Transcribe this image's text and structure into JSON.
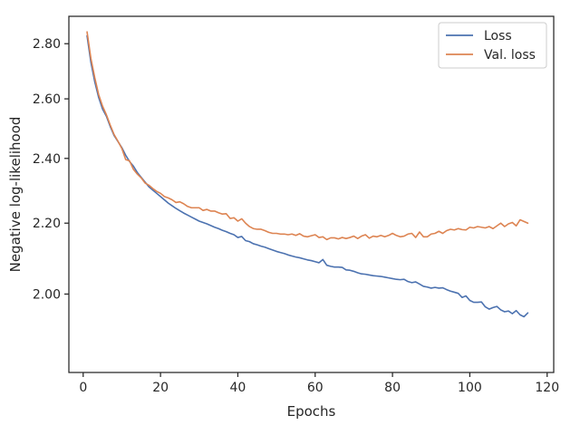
{
  "chart_data": {
    "type": "line",
    "title": "",
    "xlabel": "Epochs",
    "ylabel": "Negative log-likelihood",
    "xlim": [
      -3.7,
      121.7
    ],
    "ylim": [
      1.8,
      2.905
    ],
    "y_scale": "log",
    "x_ticks": [
      0,
      20,
      40,
      60,
      80,
      100,
      120
    ],
    "x_tick_labels": [
      "0",
      "20",
      "40",
      "60",
      "80",
      "100",
      "120"
    ],
    "y_ticks": [
      2.0,
      2.2,
      2.4,
      2.6,
      2.8
    ],
    "y_tick_labels": [
      "2.00",
      "2.20",
      "2.40",
      "2.60",
      "2.80"
    ],
    "grid": false,
    "legend_position": "top-right",
    "series": [
      {
        "name": "Loss",
        "color": "#4c72b0",
        "x_start": 1,
        "values": [
          2.83,
          2.73,
          2.66,
          2.605,
          2.565,
          2.54,
          2.505,
          2.475,
          2.455,
          2.435,
          2.41,
          2.39,
          2.375,
          2.355,
          2.34,
          2.325,
          2.31,
          2.3,
          2.29,
          2.28,
          2.27,
          2.26,
          2.252,
          2.244,
          2.237,
          2.23,
          2.224,
          2.218,
          2.212,
          2.206,
          2.202,
          2.198,
          2.193,
          2.188,
          2.184,
          2.179,
          2.175,
          2.17,
          2.166,
          2.158,
          2.161,
          2.149,
          2.146,
          2.14,
          2.137,
          2.133,
          2.13,
          2.126,
          2.122,
          2.118,
          2.115,
          2.112,
          2.108,
          2.105,
          2.102,
          2.1,
          2.097,
          2.094,
          2.092,
          2.089,
          2.086,
          2.095,
          2.079,
          2.076,
          2.074,
          2.074,
          2.073,
          2.066,
          2.065,
          2.062,
          2.058,
          2.055,
          2.054,
          2.052,
          2.05,
          2.049,
          2.048,
          2.046,
          2.044,
          2.042,
          2.04,
          2.039,
          2.04,
          2.034,
          2.031,
          2.033,
          2.027,
          2.021,
          2.019,
          2.016,
          2.018,
          2.016,
          2.017,
          2.012,
          2.008,
          2.005,
          2.002,
          1.991,
          1.995,
          1.983,
          1.978,
          1.978,
          1.979,
          1.966,
          1.96,
          1.964,
          1.967,
          1.958,
          1.953,
          1.955,
          1.948,
          1.956,
          1.945,
          1.94,
          1.95
        ]
      },
      {
        "name": "Val. loss",
        "color": "#dd8452",
        "x_start": 1,
        "values": [
          2.845,
          2.745,
          2.675,
          2.615,
          2.575,
          2.545,
          2.51,
          2.478,
          2.456,
          2.432,
          2.396,
          2.392,
          2.365,
          2.35,
          2.338,
          2.322,
          2.315,
          2.305,
          2.296,
          2.29,
          2.28,
          2.276,
          2.27,
          2.262,
          2.264,
          2.258,
          2.25,
          2.246,
          2.246,
          2.246,
          2.238,
          2.241,
          2.236,
          2.236,
          2.231,
          2.227,
          2.228,
          2.214,
          2.216,
          2.206,
          2.213,
          2.2,
          2.19,
          2.184,
          2.182,
          2.182,
          2.178,
          2.173,
          2.17,
          2.17,
          2.168,
          2.168,
          2.166,
          2.168,
          2.164,
          2.169,
          2.162,
          2.16,
          2.163,
          2.166,
          2.158,
          2.16,
          2.152,
          2.157,
          2.157,
          2.154,
          2.158,
          2.155,
          2.158,
          2.162,
          2.155,
          2.162,
          2.166,
          2.156,
          2.162,
          2.16,
          2.164,
          2.16,
          2.164,
          2.17,
          2.164,
          2.16,
          2.162,
          2.168,
          2.17,
          2.158,
          2.174,
          2.16,
          2.16,
          2.168,
          2.17,
          2.176,
          2.17,
          2.178,
          2.182,
          2.18,
          2.184,
          2.181,
          2.18,
          2.188,
          2.186,
          2.19,
          2.188,
          2.186,
          2.19,
          2.184,
          2.192,
          2.2,
          2.19,
          2.198,
          2.202,
          2.192,
          2.21,
          2.205,
          2.2
        ]
      }
    ]
  }
}
